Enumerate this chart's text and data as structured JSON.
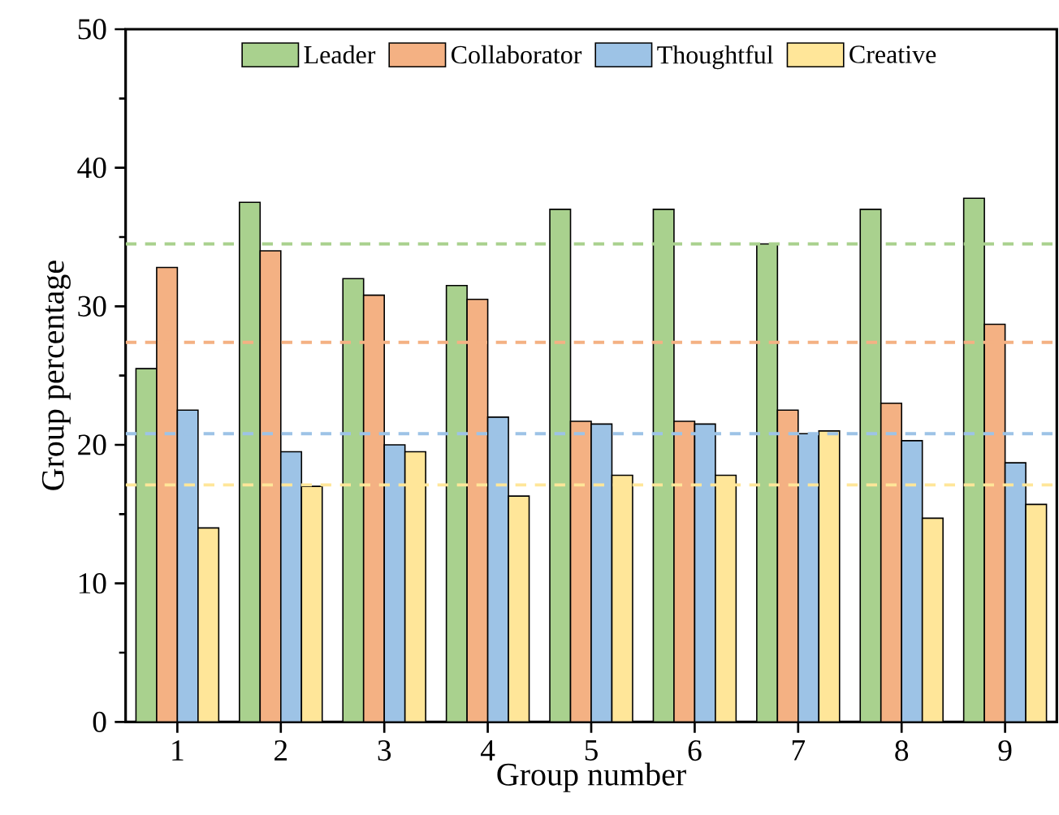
{
  "chart_data": {
    "type": "bar",
    "xlabel": "Group number",
    "ylabel": "Group percentage",
    "categories": [
      "1",
      "2",
      "3",
      "4",
      "5",
      "6",
      "7",
      "8",
      "9"
    ],
    "series": [
      {
        "name": "Leader",
        "color": "#a9d18e",
        "values": [
          25.5,
          37.5,
          32,
          31.5,
          37,
          37,
          34.5,
          37,
          37.8
        ]
      },
      {
        "name": "Collaborator",
        "color": "#f4b183",
        "values": [
          32.8,
          34,
          30.8,
          30.5,
          21.7,
          21.7,
          22.5,
          23,
          28.7
        ]
      },
      {
        "name": "Thoughtful",
        "color": "#9dc3e6",
        "values": [
          22.5,
          19.5,
          20,
          22,
          21.5,
          21.5,
          20.8,
          20.3,
          18.7
        ]
      },
      {
        "name": "Creative",
        "color": "#ffe699",
        "values": [
          14,
          17,
          19.5,
          16.3,
          17.8,
          17.8,
          21,
          14.7,
          15.7
        ]
      }
    ],
    "ylim": [
      0,
      50
    ],
    "yticks": [
      0,
      10,
      20,
      30,
      40,
      50
    ],
    "ref_lines": [
      {
        "axis": "y",
        "value": 34.5,
        "color": "#a9d18e",
        "line_style": "dashed"
      },
      {
        "axis": "y",
        "value": 27.4,
        "color": "#f4b183",
        "line_style": "dashed"
      },
      {
        "axis": "y",
        "value": 20.8,
        "color": "#9dc3e6",
        "line_style": "dashed"
      },
      {
        "axis": "y",
        "value": 17.1,
        "color": "#ffe699",
        "line_style": "dashed"
      }
    ],
    "grid": false,
    "legend": "top"
  }
}
